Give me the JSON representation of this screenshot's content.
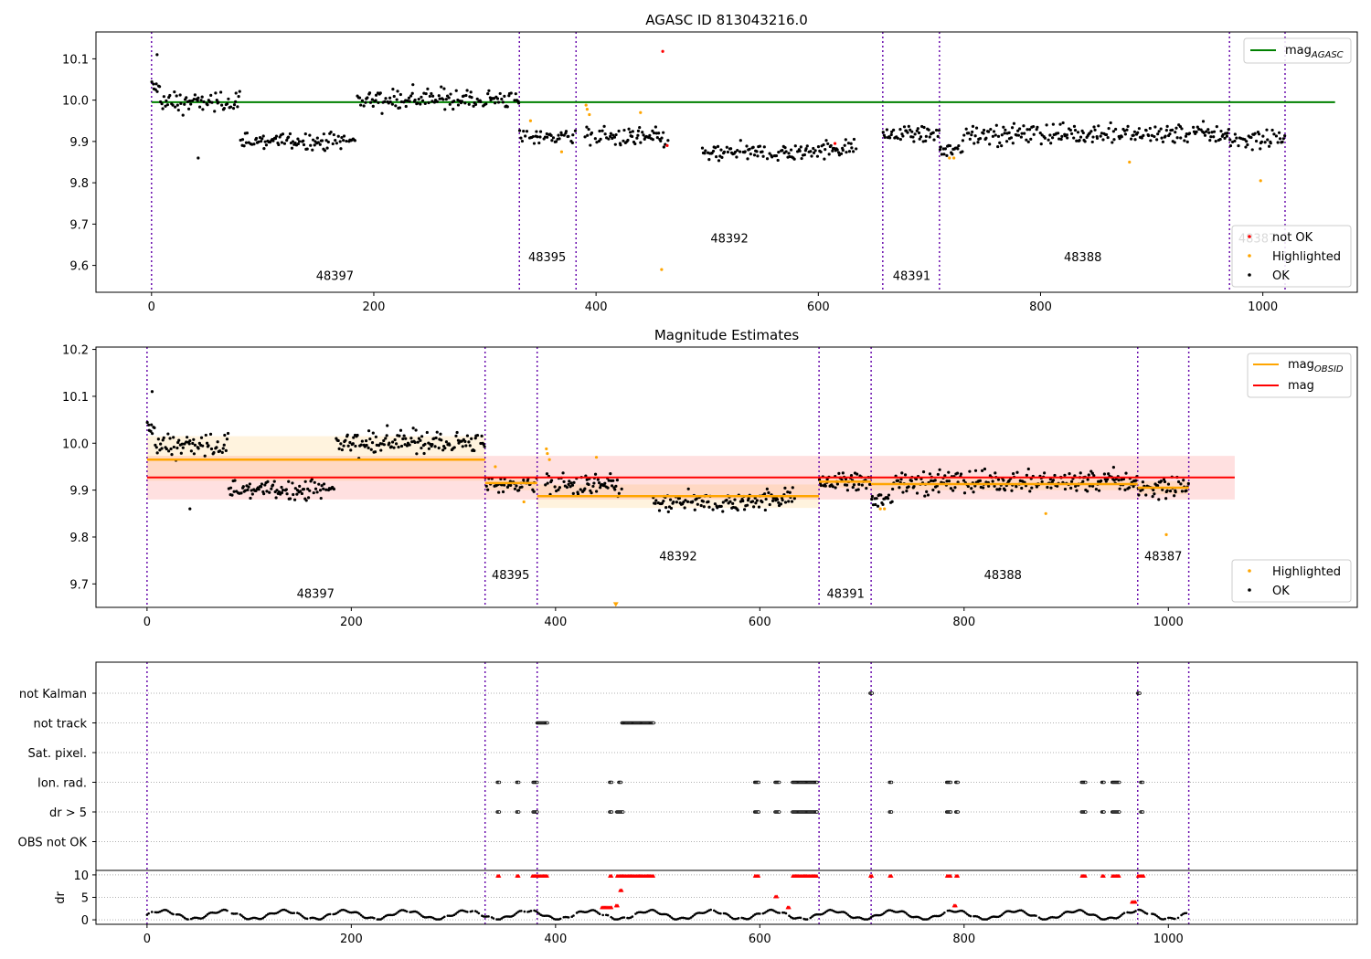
{
  "chart_data": [
    {
      "type": "scatter",
      "title": "AGASC ID 813043216.0",
      "xlim": [
        -50,
        1085
      ],
      "ylim": [
        9.535,
        10.165
      ],
      "xticks": [
        0,
        200,
        400,
        600,
        800,
        1000
      ],
      "yticks": [
        9.6,
        9.7,
        9.8,
        9.9,
        10.0,
        10.1
      ],
      "ytick_labels": [
        "9.6",
        "9.7",
        "9.8",
        "9.9",
        "10.0",
        "10.1"
      ],
      "obsid_boundaries": [
        0,
        331,
        382,
        658,
        709,
        970,
        1020
      ],
      "obsid_labels": [
        {
          "text": "48397",
          "x": 165,
          "y": 9.565
        },
        {
          "text": "48395",
          "x": 356,
          "y": 9.61
        },
        {
          "text": "48392",
          "x": 520,
          "y": 9.655
        },
        {
          "text": "48391",
          "x": 684,
          "y": 9.565
        },
        {
          "text": "48388",
          "x": 838,
          "y": 9.61
        },
        {
          "text": "48387",
          "x": 995,
          "y": 9.655
        }
      ],
      "mag_agasc": 9.995,
      "mag_agasc_xrange": [
        0,
        1065
      ],
      "segments": [
        {
          "x0": 0,
          "x1": 8,
          "mean": 10.03,
          "sd": 0.012
        },
        {
          "x0": 8,
          "x1": 80,
          "mean": 9.995,
          "sd": 0.017
        },
        {
          "x0": 80,
          "x1": 185,
          "mean": 9.902,
          "sd": 0.014
        },
        {
          "x0": 185,
          "x1": 331,
          "mean": 10.003,
          "sd": 0.017
        },
        {
          "x0": 331,
          "x1": 382,
          "mean": 9.912,
          "sd": 0.012
        },
        {
          "x0": 390,
          "x1": 465,
          "mean": 9.91,
          "sd": 0.017
        },
        {
          "x0": 495,
          "x1": 595,
          "mean": 9.872,
          "sd": 0.015
        },
        {
          "x0": 595,
          "x1": 635,
          "mean": 9.882,
          "sd": 0.015
        },
        {
          "x0": 658,
          "x1": 709,
          "mean": 9.918,
          "sd": 0.013
        },
        {
          "x0": 709,
          "x1": 730,
          "mean": 9.88,
          "sd": 0.014
        },
        {
          "x0": 730,
          "x1": 970,
          "mean": 9.918,
          "sd": 0.017
        },
        {
          "x0": 970,
          "x1": 1020,
          "mean": 9.905,
          "sd": 0.017
        }
      ],
      "highlighted_points": [
        {
          "x": 341,
          "y": 9.95
        },
        {
          "x": 369,
          "y": 9.875
        },
        {
          "x": 391,
          "y": 9.988
        },
        {
          "x": 392,
          "y": 9.978
        },
        {
          "x": 394,
          "y": 9.965
        },
        {
          "x": 440,
          "y": 9.97
        },
        {
          "x": 459,
          "y": 9.59
        },
        {
          "x": 718,
          "y": 9.86
        },
        {
          "x": 722,
          "y": 9.86
        },
        {
          "x": 880,
          "y": 9.85
        },
        {
          "x": 998,
          "y": 9.805
        }
      ],
      "not_ok_points": [
        {
          "x": 460,
          "y": 10.118
        },
        {
          "x": 464,
          "y": 9.89
        },
        {
          "x": 615,
          "y": 9.895
        }
      ],
      "outlier_ok_points": [
        {
          "x": 5,
          "y": 10.11
        },
        {
          "x": 42,
          "y": 9.86
        }
      ],
      "legend_top": [
        {
          "label": "mag",
          "subscript": "AGASC",
          "color": "#008000"
        }
      ],
      "legend_bottom": [
        {
          "label": "not OK",
          "color": "#ff0000"
        },
        {
          "label": "Highlighted",
          "color": "#ffa500"
        },
        {
          "label": "OK",
          "color": "#000000"
        }
      ]
    },
    {
      "type": "scatter",
      "title": "Magnitude Estimates",
      "xlim": [
        -50,
        1185
      ],
      "ylim": [
        9.65,
        10.205
      ],
      "xticks": [
        0,
        200,
        400,
        600,
        800,
        1000
      ],
      "yticks": [
        9.7,
        9.8,
        9.9,
        10.0,
        10.1,
        10.2
      ],
      "ytick_labels": [
        "9.7",
        "9.8",
        "9.9",
        "10.0",
        "10.1",
        "10.2"
      ],
      "obsid_labels": [
        {
          "text": "48397",
          "x": 165,
          "y": 9.67
        },
        {
          "text": "48395",
          "x": 356,
          "y": 9.71
        },
        {
          "text": "48392",
          "x": 520,
          "y": 9.75
        },
        {
          "text": "48391",
          "x": 684,
          "y": 9.67
        },
        {
          "text": "48388",
          "x": 838,
          "y": 9.71
        },
        {
          "text": "48387",
          "x": 995,
          "y": 9.75
        }
      ],
      "mag": 9.927,
      "mag_band": [
        9.88,
        9.973
      ],
      "mag_xrange": [
        0,
        1065
      ],
      "mag_obsid": [
        {
          "x0": 0,
          "x1": 331,
          "value": 9.965,
          "band": [
            9.92,
            10.015
          ]
        },
        {
          "x0": 331,
          "x1": 382,
          "value": 9.915,
          "band": [
            9.9,
            9.93
          ]
        },
        {
          "x0": 382,
          "x1": 658,
          "value": 9.887,
          "band": [
            9.862,
            9.912
          ]
        },
        {
          "x0": 658,
          "x1": 709,
          "value": 9.918,
          "band": [
            9.905,
            9.931
          ]
        },
        {
          "x0": 709,
          "x1": 970,
          "value": 9.913,
          "band": [
            9.9,
            9.926
          ]
        },
        {
          "x0": 970,
          "x1": 1020,
          "value": 9.905,
          "band": [
            9.891,
            9.919
          ]
        }
      ],
      "clipped_marker": {
        "x": 459,
        "y": 9.655
      },
      "legend_top": [
        {
          "label": "mag",
          "subscript": "OBSID",
          "color": "#ffa500"
        },
        {
          "label": "mag",
          "subscript": "",
          "color": "#ff0000"
        }
      ],
      "legend_bottom": [
        {
          "label": "Highlighted",
          "color": "#ffa500"
        },
        {
          "label": "OK",
          "color": "#000000"
        }
      ]
    },
    {
      "type": "scatter",
      "title": "",
      "ylabel": "dr",
      "xlim": [
        -50,
        1185
      ],
      "ylim": [
        -1,
        11
      ],
      "xticks": [
        0,
        200,
        400,
        600,
        800,
        1000
      ],
      "yticks": [
        0,
        5,
        10
      ],
      "ytick_labels": [
        "0",
        "5",
        "10"
      ],
      "flag_rows": [
        "not Kalman",
        "not track",
        "Sat. pixel.",
        "Ion. rad.",
        "dr > 5",
        "OBS not OK"
      ],
      "flag_events": {
        "not Kalman": [
          [
            708,
            710
          ],
          [
            970,
            972
          ]
        ],
        "not track": [
          [
            382,
            392
          ],
          [
            465,
            496
          ]
        ],
        "Sat. pixel.": [],
        "Ion. rad.": [
          [
            343,
            345
          ],
          [
            362,
            364
          ],
          [
            378,
            382
          ],
          [
            453,
            455
          ],
          [
            462,
            464
          ],
          [
            595,
            599
          ],
          [
            615,
            619
          ],
          [
            632,
            656
          ],
          [
            727,
            729
          ],
          [
            783,
            787
          ],
          [
            792,
            794
          ],
          [
            915,
            919
          ],
          [
            935,
            937
          ],
          [
            945,
            952
          ],
          [
            973,
            975
          ]
        ],
        "dr > 5": [
          [
            343,
            345
          ],
          [
            362,
            364
          ],
          [
            378,
            382
          ],
          [
            453,
            455
          ],
          [
            460,
            466
          ],
          [
            595,
            599
          ],
          [
            615,
            619
          ],
          [
            632,
            656
          ],
          [
            727,
            729
          ],
          [
            783,
            787
          ],
          [
            792,
            794
          ],
          [
            915,
            919
          ],
          [
            935,
            937
          ],
          [
            945,
            952
          ],
          [
            973,
            975
          ]
        ],
        "OBS not OK": []
      },
      "dr_not_ok": [
        {
          "x0": 343,
          "x1": 345,
          "y": 9.8
        },
        {
          "x0": 362,
          "x1": 364,
          "y": 9.8
        },
        {
          "x0": 377,
          "x1": 392,
          "y": 9.8
        },
        {
          "x0": 453,
          "x1": 455,
          "y": 9.8
        },
        {
          "x0": 460,
          "x1": 496,
          "y": 9.8
        },
        {
          "x0": 595,
          "x1": 599,
          "y": 9.8
        },
        {
          "x0": 632,
          "x1": 656,
          "y": 9.8
        },
        {
          "x0": 708,
          "x1": 710,
          "y": 9.8
        },
        {
          "x0": 727,
          "x1": 729,
          "y": 9.8
        },
        {
          "x0": 783,
          "x1": 787,
          "y": 9.8
        },
        {
          "x0": 792,
          "x1": 794,
          "y": 9.8
        },
        {
          "x0": 915,
          "x1": 919,
          "y": 9.8
        },
        {
          "x0": 935,
          "x1": 937,
          "y": 9.8
        },
        {
          "x0": 945,
          "x1": 952,
          "y": 9.8
        },
        {
          "x0": 970,
          "x1": 976,
          "y": 9.8
        },
        {
          "x0": 445,
          "x1": 455,
          "y": 2.8
        },
        {
          "x0": 463,
          "x1": 465,
          "y": 6.6
        },
        {
          "x0": 459,
          "x1": 461,
          "y": 3.2
        },
        {
          "x0": 615,
          "x1": 617,
          "y": 5.2
        },
        {
          "x0": 627,
          "x1": 629,
          "y": 2.8
        },
        {
          "x0": 790,
          "x1": 792,
          "y": 3.2
        },
        {
          "x0": 964,
          "x1": 968,
          "y": 4.0
        }
      ]
    }
  ]
}
